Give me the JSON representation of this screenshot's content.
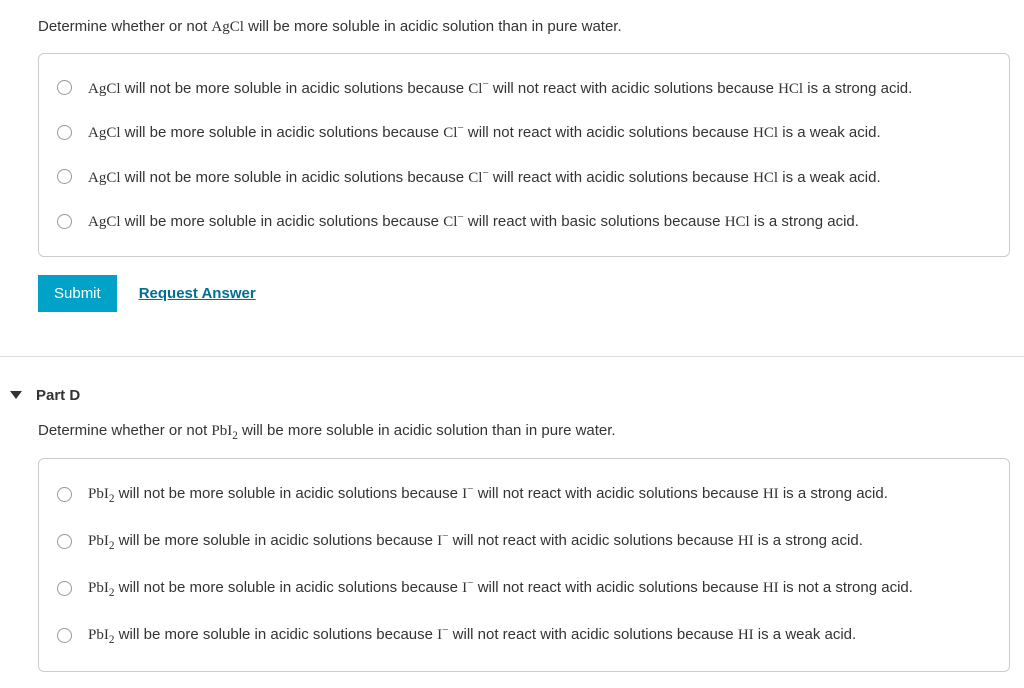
{
  "partC": {
    "question_pre": "Determine whether or not ",
    "question_chem": "AgCl",
    "question_post": " will be more soluble in acidic solution than in pure water.",
    "options": [
      {
        "segments": [
          {
            "type": "chem",
            "t": "AgCl"
          },
          {
            "type": "txt",
            "t": " will not be more soluble in acidic solutions because "
          },
          {
            "type": "chem_sup",
            "base": "Cl",
            "sup": "−"
          },
          {
            "type": "txt",
            "t": " will not react with acidic solutions because "
          },
          {
            "type": "chem",
            "t": "HCl"
          },
          {
            "type": "txt",
            "t": " is a strong acid."
          }
        ]
      },
      {
        "segments": [
          {
            "type": "chem",
            "t": "AgCl"
          },
          {
            "type": "txt",
            "t": " will be more soluble in acidic solutions because "
          },
          {
            "type": "chem_sup",
            "base": "Cl",
            "sup": "−"
          },
          {
            "type": "txt",
            "t": " will not react with acidic solutions because "
          },
          {
            "type": "chem",
            "t": "HCl"
          },
          {
            "type": "txt",
            "t": " is a weak acid."
          }
        ]
      },
      {
        "segments": [
          {
            "type": "chem",
            "t": "AgCl"
          },
          {
            "type": "txt",
            "t": " will not be more soluble in acidic solutions because "
          },
          {
            "type": "chem_sup",
            "base": "Cl",
            "sup": "−"
          },
          {
            "type": "txt",
            "t": " will react with acidic solutions because "
          },
          {
            "type": "chem",
            "t": "HCl"
          },
          {
            "type": "txt",
            "t": " is a weak acid."
          }
        ]
      },
      {
        "segments": [
          {
            "type": "chem",
            "t": "AgCl"
          },
          {
            "type": "txt",
            "t": " will be more soluble in acidic solutions because "
          },
          {
            "type": "chem_sup",
            "base": "Cl",
            "sup": "−"
          },
          {
            "type": "txt",
            "t": " will react with basic solutions because "
          },
          {
            "type": "chem",
            "t": "HCl"
          },
          {
            "type": "txt",
            "t": " is a strong acid."
          }
        ]
      }
    ],
    "submit_label": "Submit",
    "request_label": "Request Answer"
  },
  "partD": {
    "header_label": "Part D",
    "question_pre": "Determine whether or not ",
    "question_chem_base": "PbI",
    "question_chem_sub": "2",
    "question_post": " will be more soluble in acidic solution than in pure water.",
    "options": [
      {
        "segments": [
          {
            "type": "chem_sub",
            "base": "PbI",
            "sub": "2"
          },
          {
            "type": "txt",
            "t": " will not be more soluble in acidic solutions because "
          },
          {
            "type": "chem_sup",
            "base": "I",
            "sup": "−"
          },
          {
            "type": "txt",
            "t": " will not react with acidic solutions because "
          },
          {
            "type": "chem",
            "t": "HI"
          },
          {
            "type": "txt",
            "t": " is a strong acid."
          }
        ]
      },
      {
        "segments": [
          {
            "type": "chem_sub",
            "base": "PbI",
            "sub": "2"
          },
          {
            "type": "txt",
            "t": " will be more soluble in acidic solutions because "
          },
          {
            "type": "chem_sup",
            "base": "I",
            "sup": "−"
          },
          {
            "type": "txt",
            "t": " will not react with acidic solutions because "
          },
          {
            "type": "chem",
            "t": "HI"
          },
          {
            "type": "txt",
            "t": " is a strong acid."
          }
        ]
      },
      {
        "segments": [
          {
            "type": "chem_sub",
            "base": "PbI",
            "sub": "2"
          },
          {
            "type": "txt",
            "t": " will not be more soluble in acidic solutions because "
          },
          {
            "type": "chem_sup",
            "base": "I",
            "sup": "−"
          },
          {
            "type": "txt",
            "t": " will not react with acidic solutions because "
          },
          {
            "type": "chem",
            "t": "HI"
          },
          {
            "type": "txt",
            "t": " is not a strong acid."
          }
        ]
      },
      {
        "segments": [
          {
            "type": "chem_sub",
            "base": "PbI",
            "sub": "2"
          },
          {
            "type": "txt",
            "t": " will be more soluble in acidic solutions because "
          },
          {
            "type": "chem_sup",
            "base": "I",
            "sup": "−"
          },
          {
            "type": "txt",
            "t": " will not react with acidic solutions because "
          },
          {
            "type": "chem",
            "t": "HI"
          },
          {
            "type": "txt",
            "t": " is a weak acid."
          }
        ]
      }
    ]
  },
  "colors": {
    "submit_bg": "#00a2c7",
    "link_color": "#006e96",
    "border": "#cccccc",
    "text": "#333333"
  }
}
